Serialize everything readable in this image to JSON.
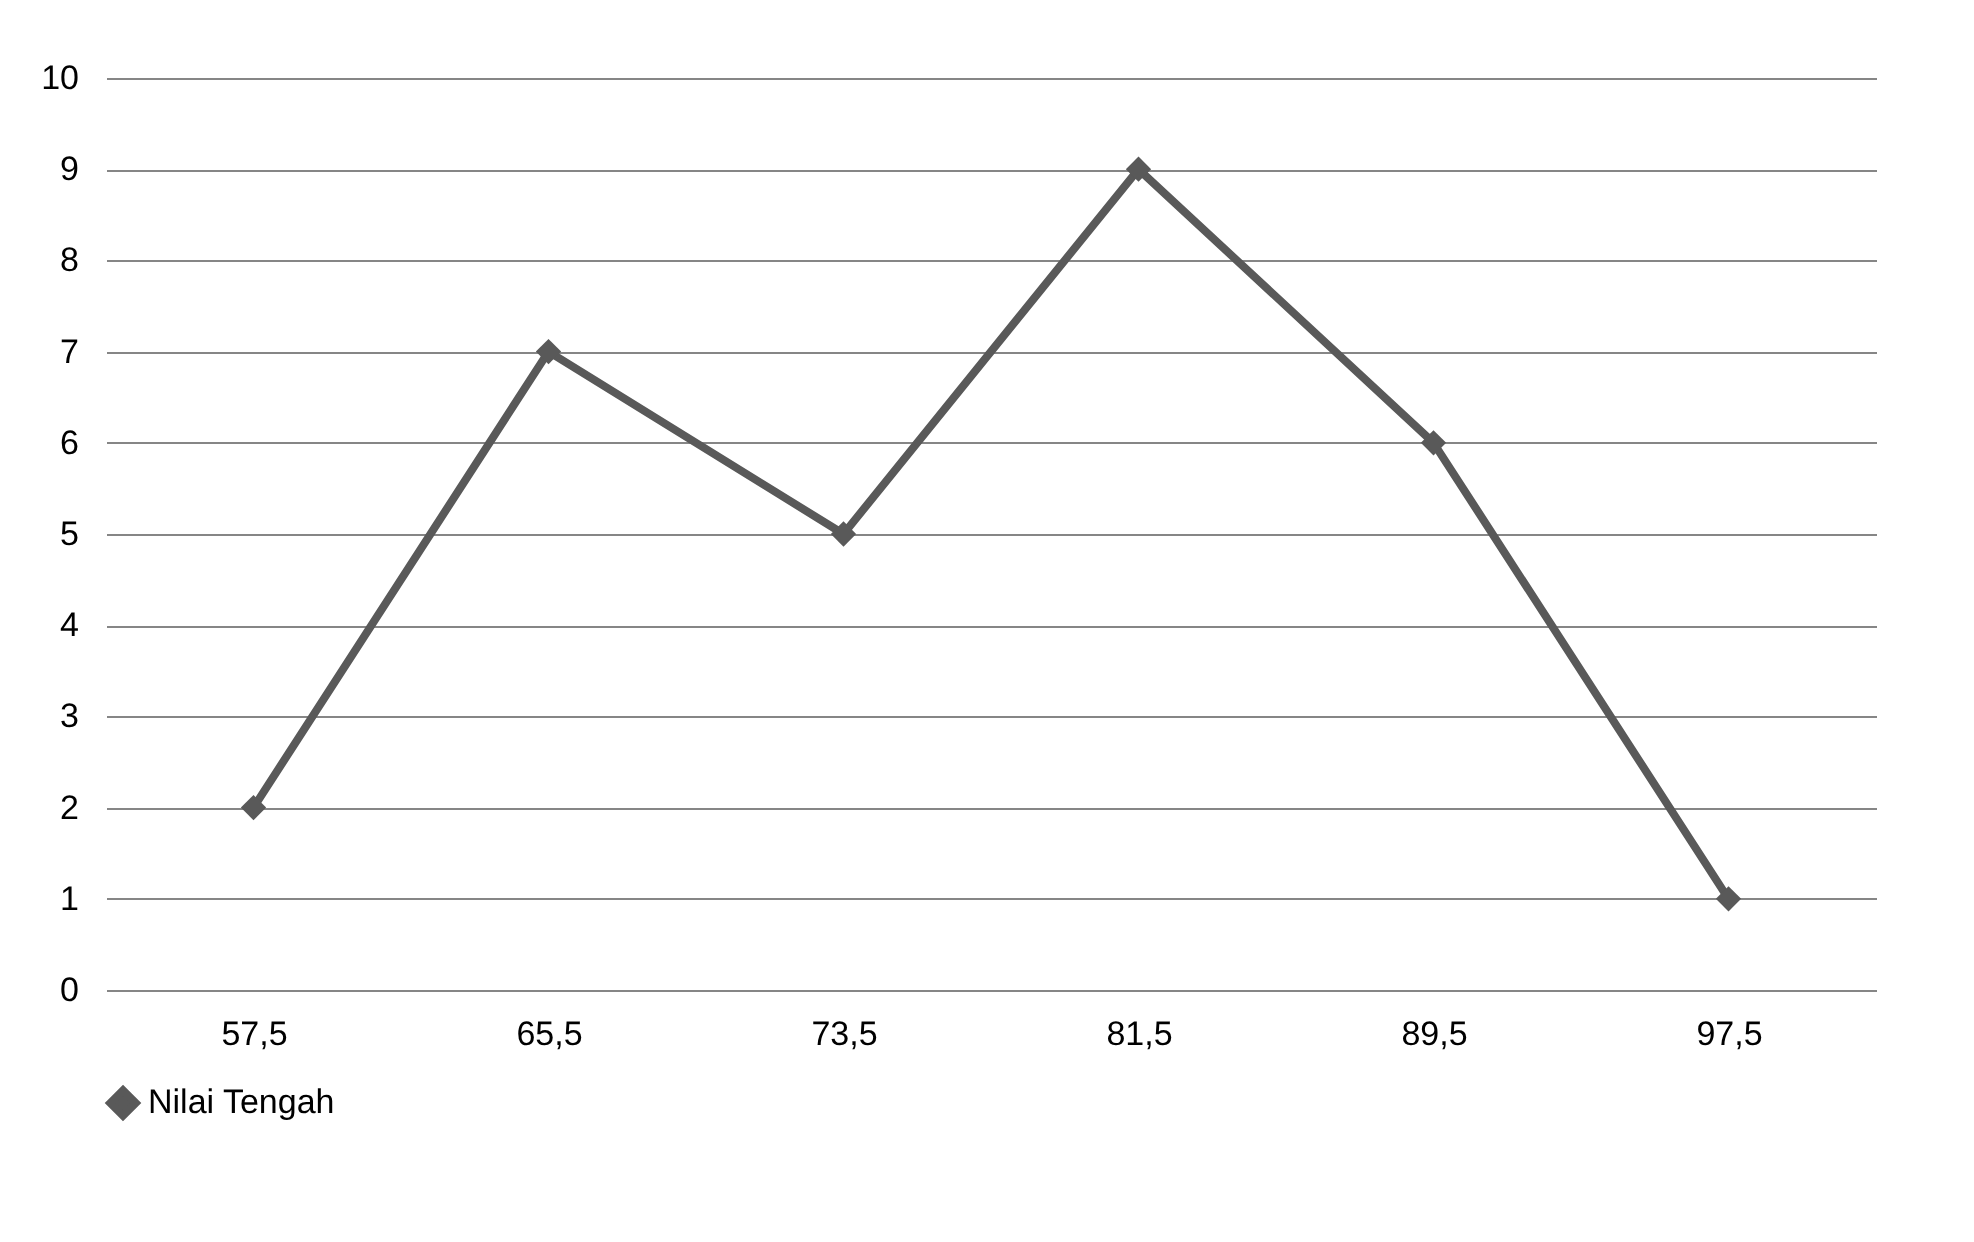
{
  "chart_data": {
    "type": "line",
    "categories": [
      "57,5",
      "65,5",
      "73,5",
      "81,5",
      "89,5",
      "97,5"
    ],
    "series": [
      {
        "name": "Nilai Tengah",
        "color": "#595959",
        "values": [
          2,
          7,
          5,
          9,
          6,
          1
        ]
      }
    ],
    "ylim": [
      0,
      10
    ],
    "yticks": [
      0,
      1,
      2,
      3,
      4,
      5,
      6,
      7,
      8,
      9,
      10
    ],
    "grid": "y",
    "legend": "bottom",
    "marker": "diamond",
    "line_style": "solid"
  }
}
